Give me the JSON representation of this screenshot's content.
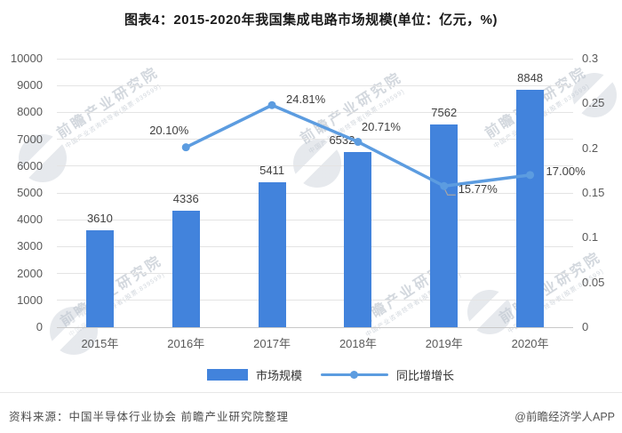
{
  "title": "图表4：2015-2020年我国集成电路市场规模(单位：亿元，%)",
  "chart_data": {
    "type": "bar+line",
    "categories": [
      "2015年",
      "2016年",
      "2017年",
      "2018年",
      "2019年",
      "2020年"
    ],
    "series": [
      {
        "name": "市场规模",
        "type": "bar",
        "axis": "left",
        "values": [
          3610,
          4336,
          5411,
          6532,
          7562,
          8848
        ],
        "labels": [
          "3610",
          "4336",
          "5411",
          "6532",
          "7562",
          "8848"
        ],
        "color": "#4283DC"
      },
      {
        "name": "同比增增长",
        "type": "line",
        "axis": "right",
        "values": [
          null,
          0.201,
          0.2481,
          0.2071,
          0.1577,
          0.17
        ],
        "labels": [
          null,
          "20.10%",
          "24.81%",
          "20.71%",
          "15.77%",
          "17.00%"
        ],
        "color": "#5C9CE0"
      }
    ],
    "left_axis": {
      "min": 0,
      "max": 10000,
      "ticks": [
        "10000",
        "9000",
        "8000",
        "7000",
        "6000",
        "5000",
        "4000",
        "3000",
        "2000",
        "1000",
        "0"
      ]
    },
    "right_axis": {
      "min": 0,
      "max": 0.3,
      "ticks": [
        "0.3",
        "0.25",
        "0.2",
        "0.15",
        "0.1",
        "0.05",
        "0"
      ]
    },
    "legend": [
      "市场规模",
      "同比增增长"
    ],
    "legend_position": "bottom",
    "grid": true,
    "title": "图表4：2015-2020年我国集成电路市场规模(单位：亿元，%)"
  },
  "legend": {
    "bar_label": "市场规模",
    "line_label": "同比增增长"
  },
  "footer": {
    "source": "资料来源：中国半导体行业协会 前瞻产业研究院整理",
    "credit": "@前瞻经济学人APP"
  },
  "watermark": {
    "text": "前瞻产业研究院",
    "subtext": "中国产业咨询领导者(股票:839599)"
  }
}
